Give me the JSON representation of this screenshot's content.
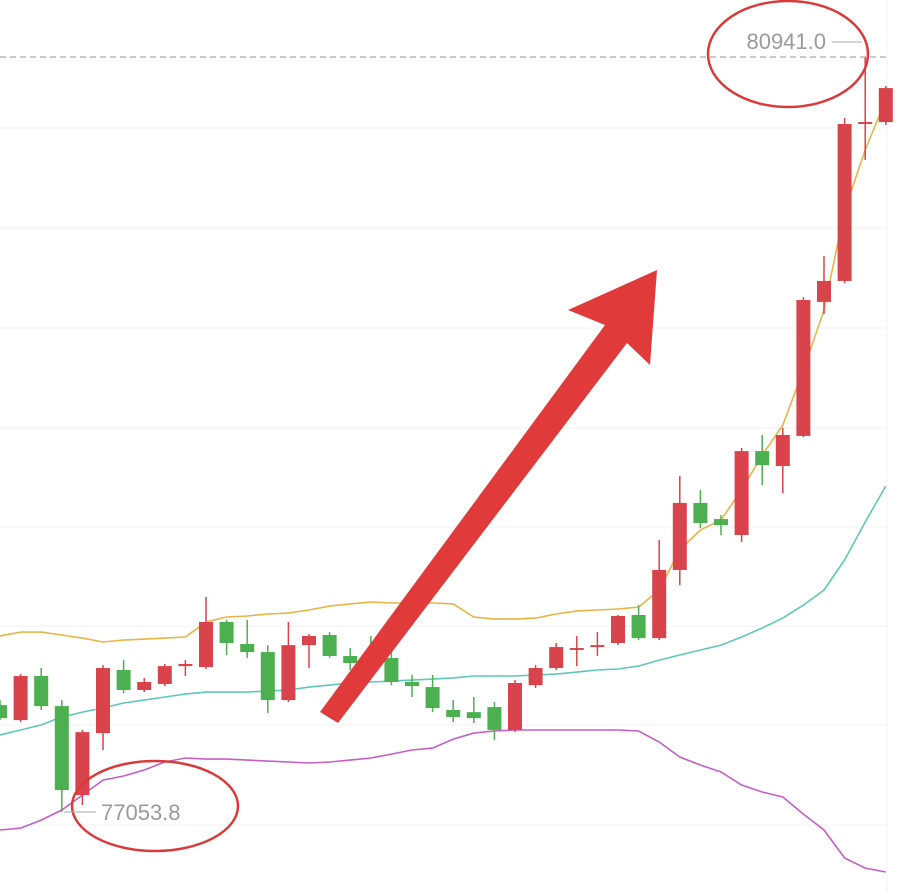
{
  "chart_data": {
    "type": "candlestick",
    "up_color": "#d9434b",
    "down_color": "#4caf50",
    "candles": {
      "open": [
        77604,
        77527,
        77754,
        77599,
        77141,
        77460,
        77785,
        77682,
        77713,
        77805,
        77800,
        78032,
        77919,
        77877,
        77630,
        77913,
        77965,
        77857,
        77836,
        77847,
        77723,
        77697,
        77579,
        77568,
        77594,
        77476,
        77707,
        77795,
        77888,
        77903,
        77924,
        78068,
        77949,
        78300,
        78645,
        78562,
        78480,
        78912,
        78835,
        78990,
        79680,
        79788,
        80596,
        80606
      ],
      "high": [
        77630,
        77764,
        77795,
        77630,
        77476,
        77810,
        77836,
        77744,
        77816,
        77836,
        78161,
        78042,
        78042,
        77913,
        78032,
        77970,
        77980,
        77898,
        77960,
        77877,
        77759,
        77759,
        77630,
        77646,
        77620,
        77733,
        77810,
        77924,
        77960,
        77980,
        78068,
        78119,
        78454,
        78784,
        78712,
        78583,
        78928,
        78995,
        79031,
        79705,
        79916,
        80627,
        80941,
        80792
      ],
      "low": [
        77527,
        77517,
        77579,
        77053.8,
        77090,
        77373,
        77666,
        77671,
        77702,
        77754,
        77790,
        77862,
        77847,
        77563,
        77620,
        77795,
        77847,
        77785,
        77785,
        77707,
        77646,
        77568,
        77517,
        77512,
        77424,
        77465,
        77692,
        77785,
        77805,
        77857,
        77913,
        77939,
        77939,
        78222,
        78516,
        78480,
        78444,
        78737,
        78696,
        78984,
        79618,
        79777,
        80411,
        80591
      ],
      "close": [
        77537,
        77754,
        77599,
        77167,
        77465,
        77795,
        77682,
        77723,
        77805,
        77816,
        78032,
        77924,
        77877,
        77630,
        77913,
        77960,
        77857,
        77821,
        77826,
        77723,
        77702,
        77589,
        77543,
        77537,
        77476,
        77718,
        77795,
        77903,
        77898,
        77913,
        78063,
        77949,
        78300,
        78645,
        78542,
        78531,
        78912,
        78840,
        78995,
        79690,
        79788,
        80596,
        80606,
        80781
      ]
    },
    "series": [
      {
        "color": "#e8b445",
        "values": [
          77960,
          77980,
          77980,
          77965,
          77949,
          77929,
          77939,
          77944,
          77949,
          77955,
          78032,
          78058,
          78063,
          78073,
          78078,
          78094,
          78114,
          78125,
          78135,
          78130,
          78130,
          78130,
          78125,
          78058,
          78047,
          78047,
          78052,
          78073,
          78089,
          78094,
          78099,
          78109,
          78197,
          78403,
          78506,
          78557,
          78712,
          78892,
          79046,
          79329,
          79638,
          80153,
          80462,
          80720
        ]
      },
      {
        "color": "#5ec9b4",
        "values": [
          77450,
          77476,
          77502,
          77543,
          77568,
          77589,
          77615,
          77630,
          77646,
          77661,
          77671,
          77671,
          77671,
          77677,
          77682,
          77697,
          77707,
          77718,
          77723,
          77728,
          77733,
          77738,
          77744,
          77754,
          77754,
          77754,
          77759,
          77764,
          77774,
          77785,
          77790,
          77805,
          77836,
          77862,
          77888,
          77913,
          77955,
          78001,
          78052,
          78119,
          78197,
          78351,
          78547,
          78732
        ]
      },
      {
        "color": "#c65ec6",
        "values": [
          76961,
          76971,
          77012,
          77064,
          77141,
          77218,
          77239,
          77270,
          77311,
          77332,
          77326,
          77326,
          77321,
          77316,
          77311,
          77306,
          77311,
          77321,
          77332,
          77352,
          77373,
          77383,
          77429,
          77460,
          77471,
          77476,
          77476,
          77476,
          77476,
          77476,
          77476,
          77471,
          77414,
          77337,
          77296,
          77260,
          77193,
          77157,
          77131,
          77043,
          76961,
          76817,
          76765,
          76745
        ]
      }
    ],
    "annotations": [
      {
        "value": 80941,
        "label": "80941.0"
      },
      {
        "value": 77053.8,
        "label": "77053.8"
      }
    ]
  }
}
